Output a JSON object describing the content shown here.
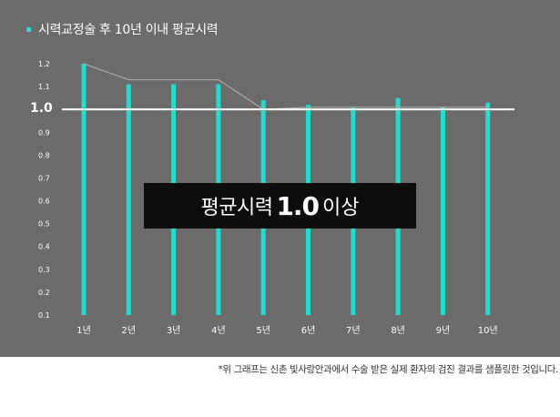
{
  "colors": {
    "panel_bg": "#6b6b6b",
    "bar": "#19e0d0",
    "line": "#a8a8a8",
    "reference_line": "#ffffff",
    "banner_bg": "#0d0d0d"
  },
  "banner": {
    "prefix": "평균시력",
    "value": "1.0",
    "suffix": "이상"
  },
  "footnote": "*위 그래프는 신촌 빛사랑안과에서 수술 받은 실제 환자의 검진 결과를 샘플링한 것입니다.",
  "chart_data": {
    "type": "bar",
    "title": "",
    "xlabel": "",
    "ylabel": "",
    "legend": {
      "position": "top-left",
      "entries": [
        "시력교정술 후 10년 이내 평균시력"
      ]
    },
    "categories": [
      "1년",
      "2년",
      "3년",
      "4년",
      "5년",
      "6년",
      "7년",
      "8년",
      "9년",
      "10년"
    ],
    "series": [
      {
        "name": "시력교정술 후 10년 이내 평균시력",
        "values": [
          1.2,
          1.11,
          1.11,
          1.11,
          1.04,
          1.02,
          1.01,
          1.05,
          1.01,
          1.03
        ]
      }
    ],
    "overlay_line": {
      "type": "line",
      "values": [
        1.2,
        1.13,
        1.13,
        1.13,
        1.0,
        1.01,
        1.01,
        1.01,
        1.01,
        1.01
      ]
    },
    "reference_line": {
      "value": 1.0,
      "label": "1.0"
    },
    "y_ticks": [
      "0.1",
      "0.2",
      "0.3",
      "0.4",
      "0.5",
      "0.6",
      "0.7",
      "0.8",
      "0.9",
      "1.0",
      "1.1",
      "1.2"
    ],
    "ylim": [
      0.1,
      1.2
    ],
    "grid": false
  }
}
